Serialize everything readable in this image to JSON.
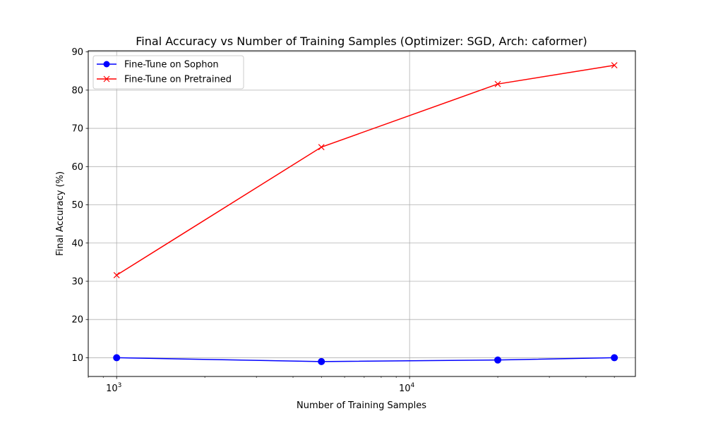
{
  "chart_data": {
    "type": "line",
    "title": "Final Accuracy vs Number of Training Samples (Optimizer: SGD, Arch: caformer)",
    "xlabel": "Number of Training Samples",
    "ylabel": "Final Accuracy (%)",
    "x_scale": "log",
    "xlim": [
      800,
      59000
    ],
    "ylim": [
      5.1,
      90.3
    ],
    "x_major_ticks": [
      {
        "value": 1000,
        "base": "10",
        "exp": "3"
      },
      {
        "value": 10000,
        "base": "10",
        "exp": "4"
      }
    ],
    "y_ticks": [
      10,
      20,
      30,
      40,
      50,
      60,
      70,
      80,
      90
    ],
    "grid": true,
    "legend_position": "top-left",
    "x": [
      1000,
      5000,
      20000,
      50000
    ],
    "series": [
      {
        "name": "Fine-Tune on Sophon",
        "values": [
          10.0,
          9.0,
          9.4,
          10.0
        ],
        "color": "#0000ff",
        "marker": "circle"
      },
      {
        "name": "Fine-Tune on Pretrained",
        "values": [
          31.6,
          65.1,
          81.6,
          86.5
        ],
        "color": "#ff0000",
        "marker": "x"
      }
    ]
  }
}
